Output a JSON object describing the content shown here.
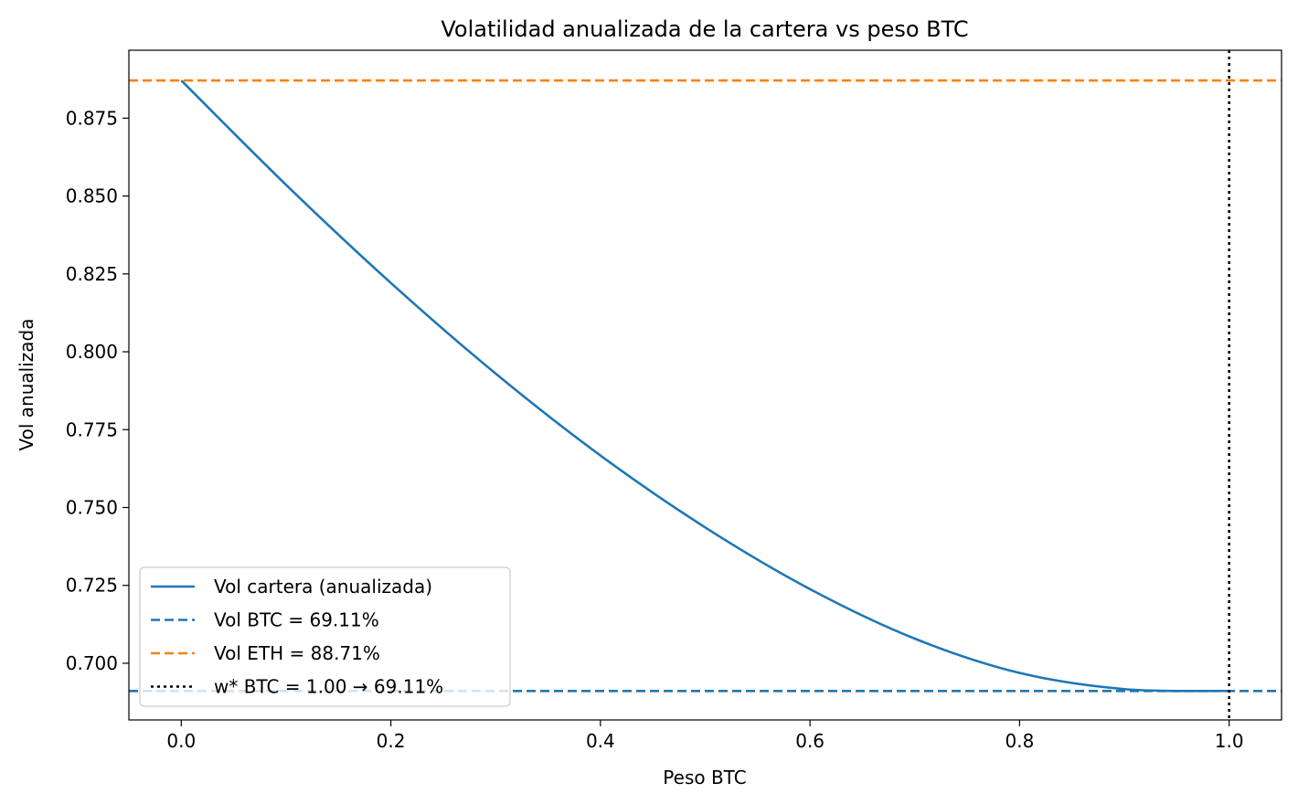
{
  "chart_data": {
    "type": "line",
    "title": "Volatilidad anualizada de la cartera vs peso BTC",
    "xlabel": "Peso BTC",
    "ylabel": "Vol anualizada",
    "xlim": [
      -0.05,
      1.05
    ],
    "ylim": [
      0.6818,
      0.8968
    ],
    "x_ticks": [
      0.0,
      0.2,
      0.4,
      0.6,
      0.8,
      1.0
    ],
    "x_tick_labels": [
      "0.0",
      "0.2",
      "0.4",
      "0.6",
      "0.8",
      "1.0"
    ],
    "y_ticks": [
      0.7,
      0.725,
      0.75,
      0.775,
      0.8,
      0.825,
      0.85,
      0.875
    ],
    "y_tick_labels": [
      "0.700",
      "0.725",
      "0.750",
      "0.775",
      "0.800",
      "0.825",
      "0.850",
      "0.875"
    ],
    "grid": false,
    "legend_position": "lower-left",
    "series": [
      {
        "name": "Vol cartera (anualizada)",
        "style": "solid",
        "color": "#1f77b4",
        "x": [
          0.0,
          0.1,
          0.2,
          0.3,
          0.4,
          0.5,
          0.6,
          0.7,
          0.8,
          0.9,
          1.0
        ],
        "y": [
          0.8871,
          0.8536,
          0.8221,
          0.793,
          0.7667,
          0.7436,
          0.7238,
          0.7079,
          0.6969,
          0.6917,
          0.6911
        ]
      }
    ],
    "reference_lines": [
      {
        "name": "Vol BTC = 69.11%",
        "orientation": "horizontal",
        "value": 0.6911,
        "style": "dashed",
        "color": "#1f77b4"
      },
      {
        "name": "Vol ETH = 88.71%",
        "orientation": "horizontal",
        "value": 0.8871,
        "style": "dashed",
        "color": "#ff7f0e"
      },
      {
        "name": "w* BTC = 1.00 → 69.11%",
        "orientation": "vertical",
        "value": 1.0,
        "style": "dotted",
        "color": "#000000"
      }
    ]
  }
}
